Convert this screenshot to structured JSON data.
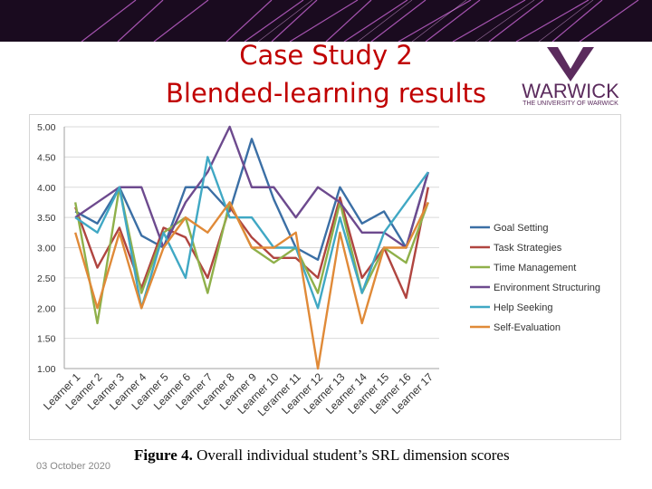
{
  "slide": {
    "title_line1": "Case Study 2",
    "title_line2": "Blended-learning results",
    "logo_word": "WARWICK",
    "logo_sub": "THE UNIVERSITY OF WARWICK",
    "date": "03 October 2020",
    "caption_bold": "Figure 4.",
    "caption_text": " Overall individual student’s  SRL dimension scores"
  },
  "chart_data": {
    "type": "line",
    "title": "",
    "xlabel": "",
    "ylabel": "",
    "ylim": [
      1.0,
      5.0
    ],
    "yticks": [
      "1.00",
      "1.50",
      "2.00",
      "2.50",
      "3.00",
      "3.50",
      "4.00",
      "4.50",
      "5.00"
    ],
    "grid": true,
    "legend": "right",
    "categories": [
      "Learner 1",
      "Learner 2",
      "Learner 3",
      "Learner 4",
      "Learner 5",
      "Learner 6",
      "Learner 7",
      "Learner 8",
      "Learner 9",
      "Learner 10",
      "Lerarner 11",
      "Learner 12",
      "Learner 13",
      "Learner 14",
      "Learner 15",
      "Learner 16",
      "Learner 17"
    ],
    "series": [
      {
        "name": "Goal Setting",
        "color": "#3b6fa5",
        "values": [
          3.6,
          3.4,
          4.0,
          3.2,
          3.0,
          4.0,
          4.0,
          3.6,
          4.8,
          3.8,
          3.0,
          2.8,
          4.0,
          3.4,
          3.6,
          3.0,
          4.25
        ]
      },
      {
        "name": "Task Strategies",
        "color": "#b04540",
        "values": [
          3.67,
          2.67,
          3.33,
          2.33,
          3.33,
          3.17,
          2.5,
          3.67,
          3.17,
          2.83,
          2.83,
          2.5,
          3.83,
          2.5,
          3.0,
          2.17,
          4.0
        ]
      },
      {
        "name": "Time Management",
        "color": "#8fb04a",
        "values": [
          3.75,
          1.75,
          4.0,
          2.25,
          3.25,
          3.5,
          2.25,
          3.75,
          3.0,
          2.75,
          3.0,
          2.25,
          3.75,
          2.25,
          3.0,
          2.75,
          3.75
        ]
      },
      {
        "name": "Environment Structuring",
        "color": "#6d4a8e",
        "values": [
          3.5,
          3.75,
          4.0,
          4.0,
          3.0,
          3.75,
          4.25,
          5.0,
          4.0,
          4.0,
          3.5,
          4.0,
          3.75,
          3.25,
          3.25,
          3.0,
          4.25
        ]
      },
      {
        "name": "Help Seeking",
        "color": "#40a8c4",
        "values": [
          3.5,
          3.25,
          4.0,
          2.0,
          3.25,
          2.5,
          4.5,
          3.5,
          3.5,
          3.0,
          3.0,
          2.0,
          3.5,
          2.25,
          3.25,
          3.75,
          4.25
        ]
      },
      {
        "name": "Self-Evaluation",
        "color": "#e08a38",
        "values": [
          3.25,
          2.0,
          3.25,
          2.0,
          3.0,
          3.5,
          3.25,
          3.75,
          3.0,
          3.0,
          3.25,
          1.0,
          3.25,
          1.75,
          3.0,
          3.0,
          3.75
        ]
      }
    ]
  }
}
